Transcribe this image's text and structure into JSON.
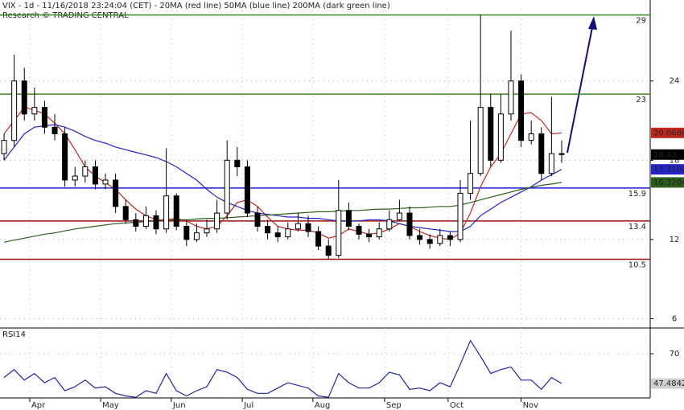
{
  "chart_data": {
    "type": "candlestick",
    "title": "VIX - 1d - 11/16/2018 23:24:04 (CET) - 20MA (red line) 50MA (blue line) 200MA (dark green line)",
    "subtitle": "Research © TRADING CENTRAL",
    "x": [
      0,
      3,
      6,
      9,
      12,
      15,
      18,
      21,
      24,
      27,
      30,
      33,
      36,
      39,
      42,
      45,
      48,
      51,
      54,
      57,
      60,
      63,
      66,
      69,
      72,
      75,
      78,
      81,
      84,
      87,
      90,
      93,
      96,
      99,
      102,
      105,
      108,
      111,
      114,
      117,
      120,
      123,
      126,
      129,
      132,
      135,
      138,
      141,
      144,
      147,
      150,
      153,
      156,
      159,
      162,
      165
    ],
    "xlim": [
      -1.2,
      191.2
    ],
    "xticks": [
      {
        "value": 7.6,
        "label": "Apr"
      },
      {
        "value": 28.6,
        "label": "May"
      },
      {
        "value": 49.5,
        "label": "Jun"
      },
      {
        "value": 70.5,
        "label": "Jul"
      },
      {
        "value": 91.4,
        "label": "Aug"
      },
      {
        "value": 112.6,
        "label": "Sep"
      },
      {
        "value": 131.4,
        "label": "Oct"
      },
      {
        "value": 153,
        "label": "Nov"
      }
    ],
    "open": [
      18.5,
      19.5,
      24,
      21.5,
      22,
      20.5,
      20,
      16.5,
      16.8,
      17.5,
      16.2,
      16.5,
      14.5,
      13.5,
      13,
      13.8,
      12.8,
      15.3,
      13,
      12,
      12.5,
      12.8,
      14,
      18,
      17.5,
      14,
      13,
      12.5,
      12.2,
      12.8,
      13.2,
      12.6,
      11.5,
      10.8,
      14.2,
      13,
      12.4,
      12.2,
      12.8,
      13.5,
      14,
      12.3,
      12,
      11.7,
      12.3,
      12,
      15.5,
      17,
      22,
      18,
      21.5,
      24,
      19.5,
      20,
      17,
      18.5
    ],
    "high": [
      20,
      26,
      25,
      23.5,
      22.5,
      21.5,
      20.5,
      17.5,
      18,
      18,
      17,
      17,
      15,
      14,
      14.5,
      14.2,
      18.9,
      15.5,
      13.5,
      13.2,
      13.5,
      15,
      19.5,
      19,
      18,
      14.5,
      13.5,
      13,
      13.3,
      14,
      13.8,
      13,
      12,
      16.5,
      14.8,
      13.2,
      12.8,
      13.3,
      14.2,
      15,
      14.5,
      12.8,
      12.4,
      12.8,
      12.6,
      16.5,
      21,
      29,
      23,
      23,
      27.8,
      24.5,
      21,
      20.5,
      22.8,
      19.5
    ],
    "low": [
      18,
      19,
      21,
      21,
      20,
      19.5,
      16,
      16,
      16.3,
      15.8,
      15.8,
      14,
      13.2,
      12.6,
      12.8,
      12.4,
      12.5,
      12.7,
      11.5,
      11.8,
      12.2,
      12.5,
      13.5,
      16.8,
      13.7,
      12.6,
      12,
      11.8,
      12,
      12.6,
      12.2,
      11.2,
      10.5,
      10.6,
      12.7,
      12,
      11.8,
      12,
      12.6,
      13.4,
      12,
      11.6,
      11.3,
      11.5,
      11.5,
      11.8,
      15,
      16.8,
      17.5,
      17.8,
      21,
      19,
      19.2,
      16.5,
      16.8,
      17.8
    ],
    "close": [
      19.5,
      24,
      21.5,
      22,
      20.5,
      20,
      16.5,
      16.8,
      17.5,
      16.2,
      16.5,
      14.5,
      13.5,
      13,
      13.8,
      12.8,
      15.3,
      13,
      12,
      12.5,
      12.8,
      14,
      18,
      17.5,
      14,
      13,
      12.5,
      12.2,
      12.8,
      13.2,
      12.6,
      11.5,
      10.8,
      14.2,
      13,
      12.4,
      12.2,
      12.8,
      13.5,
      14,
      12.3,
      12,
      11.7,
      12.3,
      12,
      15.5,
      17,
      22,
      18,
      21.5,
      24,
      19.5,
      20,
      17,
      18.5,
      18.43
    ],
    "close_color": "#000000",
    "series": [
      {
        "name": "20MA",
        "color": "#c0281e",
        "values": [
          20,
          21,
          22,
          21.8,
          21.5,
          20.8,
          20,
          18.8,
          17.5,
          16.8,
          16.3,
          15.8,
          15,
          14.3,
          13.8,
          13.5,
          13.5,
          13.6,
          13.4,
          13,
          12.8,
          13,
          13.8,
          14.8,
          15,
          14.5,
          13.7,
          13,
          12.8,
          12.7,
          12.7,
          12.5,
          12.1,
          12.3,
          12.8,
          12.6,
          12.4,
          12.5,
          12.8,
          13.2,
          13,
          12.6,
          12.3,
          12.1,
          12,
          12.5,
          14,
          16,
          17.5,
          18.5,
          20,
          21.5,
          21.6,
          21,
          20,
          20.0686
        ]
      },
      {
        "name": "50MA",
        "color": "#2424c8",
        "values": [
          18,
          19,
          20,
          20.5,
          20.6,
          20.7,
          20.5,
          20.2,
          19.8,
          19.5,
          19.3,
          19,
          18.8,
          18.6,
          18.4,
          18.2,
          17.9,
          17.5,
          17,
          16.5,
          15.8,
          15.2,
          14.8,
          14.5,
          14.2,
          14,
          13.9,
          13.8,
          13.7,
          13.7,
          13.6,
          13.6,
          13.5,
          13.4,
          13.4,
          13.4,
          13.5,
          13.5,
          13.4,
          13.2,
          13,
          12.9,
          12.8,
          12.7,
          12.6,
          12.6,
          13,
          13.8,
          14.3,
          14.8,
          15.2,
          15.6,
          16,
          16.5,
          16.9,
          17.3102
        ]
      },
      {
        "name": "200MA",
        "color": "#2e5e1e",
        "values": [
          11.8,
          11.95,
          12.1,
          12.25,
          12.4,
          12.5,
          12.65,
          12.8,
          12.9,
          13,
          13.1,
          13.2,
          13.25,
          13.3,
          13.35,
          13.4,
          13.45,
          13.5,
          13.5,
          13.55,
          13.6,
          13.6,
          13.65,
          13.7,
          13.75,
          13.8,
          13.85,
          13.9,
          13.95,
          14,
          14.05,
          14.1,
          14.1,
          14.15,
          14.2,
          14.2,
          14.25,
          14.3,
          14.3,
          14.35,
          14.4,
          14.4,
          14.45,
          14.5,
          14.5,
          14.6,
          14.8,
          15,
          15.2,
          15.4,
          15.6,
          15.8,
          15.95,
          16.1,
          16.2,
          16.3204
        ]
      }
    ],
    "levels": [
      {
        "value": 29,
        "color": "#3a8a1e"
      },
      {
        "value": 23,
        "color": "#3a8a1e"
      },
      {
        "value": 15.9,
        "color": "#1e1ed2"
      },
      {
        "value": 13.4,
        "color": "#a01414"
      },
      {
        "value": 10.5,
        "color": "#a01414"
      }
    ],
    "ylim": [
      5.3,
      29.4
    ],
    "yticks": [
      6,
      12,
      18,
      24
    ],
    "rsi": {
      "label": "RSI14",
      "color": "#2424a0",
      "values": [
        52,
        58,
        50,
        55,
        48,
        52,
        42,
        45,
        50,
        44,
        45,
        40,
        38,
        37,
        42,
        40,
        55,
        42,
        38,
        42,
        45,
        58,
        56,
        52,
        43,
        40,
        40,
        44,
        48,
        46,
        44,
        38,
        37,
        55,
        48,
        44,
        44,
        48,
        56,
        54,
        43,
        44,
        42,
        48,
        45,
        62,
        80,
        68,
        55,
        58,
        60,
        50,
        50,
        43,
        52,
        47.4842
      ],
      "ylim": [
        36.5,
        88.3
      ],
      "yticks": [
        70
      ]
    }
  }
}
